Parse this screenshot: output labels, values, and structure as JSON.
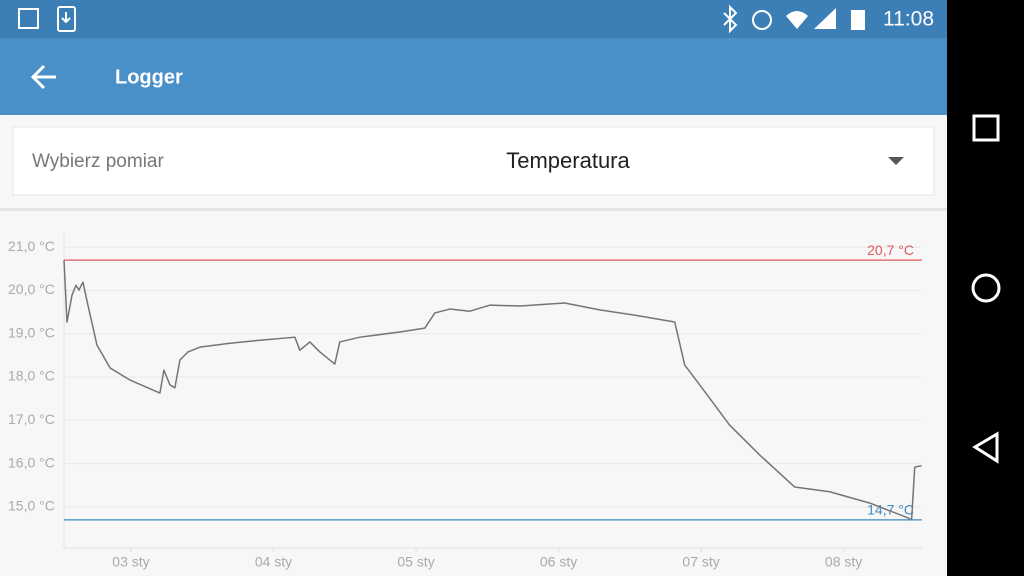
{
  "status_bar": {
    "time": "11:08"
  },
  "app_bar": {
    "title": "Logger"
  },
  "selector": {
    "label": "Wybierz pomiar",
    "value": "Temperatura"
  },
  "chart_data": {
    "type": "line",
    "x": [
      2.53,
      2.551,
      2.586,
      2.614,
      2.635,
      2.663,
      2.698,
      2.761,
      2.853,
      2.993,
      3.203,
      3.231,
      3.273,
      3.308,
      3.343,
      3.4,
      3.484,
      3.694,
      3.904,
      4.15,
      4.185,
      4.255,
      4.325,
      4.43,
      4.465,
      4.606,
      4.886,
      5.062,
      5.132,
      5.237,
      5.377,
      5.517,
      5.728,
      6.043,
      6.289,
      6.569,
      6.815,
      6.885,
      6.99,
      7.2,
      7.411,
      7.656,
      7.902,
      8.182,
      8.449,
      8.477,
      8.499,
      8.547
    ],
    "series": [
      {
        "color": "#757575",
        "values": [
          20.7,
          19.27,
          19.89,
          20.12,
          20.01,
          20.19,
          19.66,
          18.74,
          18.21,
          17.93,
          17.63,
          18.16,
          17.82,
          17.75,
          18.39,
          18.58,
          18.69,
          18.78,
          18.85,
          18.92,
          18.62,
          18.81,
          18.58,
          18.3,
          18.81,
          18.92,
          19.04,
          19.13,
          19.48,
          19.57,
          19.52,
          19.66,
          19.64,
          19.71,
          19.55,
          19.41,
          19.27,
          18.28,
          17.82,
          16.89,
          16.2,
          15.46,
          15.35,
          15.09,
          14.75,
          14.7,
          15.92,
          15.95
        ]
      }
    ],
    "xlim": [
      2.53,
      8.55
    ],
    "xticks": [
      {
        "value": 3,
        "label": "03 sty"
      },
      {
        "value": 4,
        "label": "04 sty"
      },
      {
        "value": 5,
        "label": "05 sty"
      },
      {
        "value": 6,
        "label": "06 sty"
      },
      {
        "value": 7,
        "label": "07 sty"
      },
      {
        "value": 8,
        "label": "08 sty"
      }
    ],
    "ylim": [
      14.05,
      21.35
    ],
    "yticks": [
      {
        "value": 15,
        "label": "15,0 °C"
      },
      {
        "value": 16,
        "label": "16,0 °C"
      },
      {
        "value": 17,
        "label": "17,0 °C"
      },
      {
        "value": 18,
        "label": "18,0 °C"
      },
      {
        "value": 19,
        "label": "19,0 °C"
      },
      {
        "value": 20,
        "label": "20,0 °C"
      },
      {
        "value": 21,
        "label": "21,0 °C"
      }
    ],
    "grid": true,
    "reference_lines": [
      {
        "value": 20.7,
        "label": "20,7 °C",
        "color": "#e05a5f"
      },
      {
        "value": 14.7,
        "label": "14,7 °C",
        "color": "#3d8bbf"
      }
    ]
  }
}
